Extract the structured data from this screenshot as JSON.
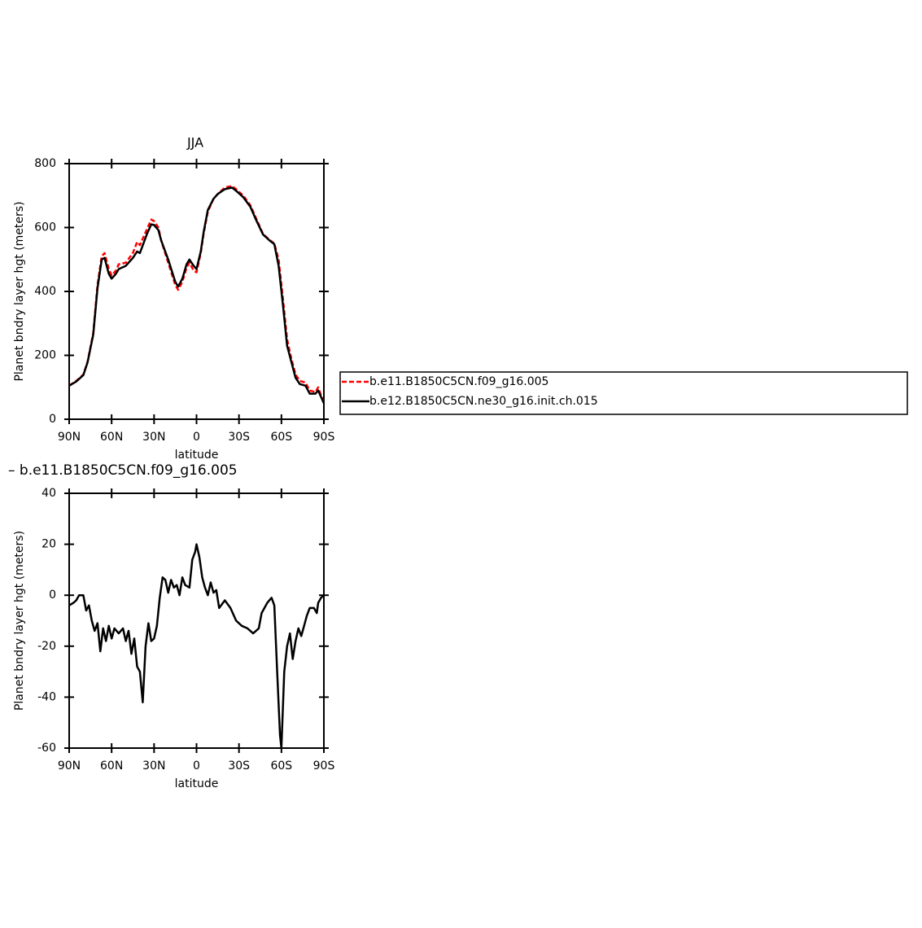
{
  "chart_data": [
    {
      "type": "line",
      "title": "JJA",
      "xlabel": "latitude",
      "ylabel": "Planet bndry layer hgt (meters)",
      "x": [
        90,
        85,
        80,
        77,
        73,
        70,
        67,
        65,
        62,
        60,
        57,
        55,
        50,
        45,
        42,
        40,
        35,
        32,
        30,
        27,
        25,
        20,
        15,
        13,
        10,
        7,
        5,
        2,
        0,
        -3,
        -5,
        -8,
        -12,
        -15,
        -20,
        -25,
        -28,
        -33,
        -38,
        -42,
        -47,
        -52,
        -55,
        -58,
        -61,
        -64,
        -67,
        -70,
        -73,
        -77,
        -80,
        -84,
        -86,
        -90
      ],
      "series": [
        {
          "name": "b.e11.B1850C5CN.f09_g16.005",
          "color": "#ff0000",
          "dash": "dashed",
          "values": [
            105,
            120,
            140,
            180,
            270,
            420,
            510,
            520,
            470,
            450,
            465,
            485,
            490,
            520,
            555,
            545,
            595,
            625,
            620,
            600,
            560,
            490,
            420,
            405,
            430,
            475,
            490,
            465,
            460,
            520,
            580,
            650,
            690,
            705,
            725,
            730,
            720,
            700,
            670,
            630,
            580,
            560,
            550,
            500,
            380,
            250,
            190,
            140,
            120,
            115,
            90,
            85,
            100,
            50
          ]
        },
        {
          "name": "b.e12.B1850C5CN.ne30_g16.init.ch.015",
          "color": "#000000",
          "dash": "solid",
          "values": [
            105,
            118,
            138,
            178,
            265,
            410,
            500,
            505,
            455,
            440,
            455,
            470,
            480,
            505,
            525,
            520,
            580,
            610,
            608,
            592,
            560,
            500,
            430,
            415,
            440,
            485,
            500,
            480,
            470,
            525,
            585,
            655,
            690,
            705,
            720,
            725,
            715,
            695,
            665,
            625,
            578,
            558,
            548,
            480,
            360,
            230,
            180,
            130,
            110,
            105,
            80,
            80,
            90,
            50
          ]
        }
      ],
      "xlim": [
        90,
        -90
      ],
      "xticks": [
        {
          "value": 90,
          "label": "90N"
        },
        {
          "value": 60,
          "label": "60N"
        },
        {
          "value": 30,
          "label": "30N"
        },
        0,
        {
          "value": -30,
          "label": "30S"
        },
        {
          "value": -60,
          "label": "60S"
        },
        {
          "value": -90,
          "label": "90S"
        }
      ],
      "ylim": [
        0,
        800
      ],
      "yticks": [
        0,
        200,
        400,
        600,
        800
      ],
      "legend": "right"
    },
    {
      "type": "line",
      "title": "– b.e11.B1850C5CN.f09_g16.005",
      "xlabel": "latitude",
      "ylabel": "Planet bndry layer hgt (meters)",
      "x": [
        90,
        87,
        85,
        83,
        80,
        78,
        76,
        74,
        72,
        70,
        68,
        66,
        64,
        62,
        60,
        58,
        55,
        52,
        50,
        48,
        46,
        44,
        42,
        40,
        38,
        36,
        34,
        32,
        30,
        28,
        26,
        24,
        22,
        20,
        18,
        16,
        14,
        12,
        10,
        8,
        5,
        3,
        1,
        0,
        -2,
        -4,
        -6,
        -8,
        -10,
        -12,
        -14,
        -16,
        -20,
        -24,
        -28,
        -32,
        -36,
        -40,
        -44,
        -46,
        -50,
        -53,
        -55,
        -57,
        -59,
        -60,
        -62,
        -64,
        -66,
        -68,
        -70,
        -72,
        -74,
        -76,
        -78,
        -80,
        -83,
        -85,
        -86,
        -88,
        -90
      ],
      "series": [
        {
          "color": "#000000",
          "dash": "solid",
          "values": [
            -4,
            -3,
            -2,
            0,
            0,
            -6,
            -4,
            -10,
            -14,
            -11,
            -22,
            -13,
            -18,
            -12,
            -17,
            -13,
            -15,
            -13,
            -18,
            -14,
            -23,
            -17,
            -28,
            -30,
            -42,
            -20,
            -11,
            -18,
            -17,
            -12,
            -1,
            7,
            6,
            1,
            6,
            3,
            4,
            0,
            7,
            4,
            3,
            14,
            17,
            20,
            15,
            7,
            3,
            0,
            5,
            1,
            2,
            -5,
            -2,
            -5,
            -10,
            -12,
            -13,
            -15,
            -13,
            -7,
            -3,
            -1,
            -4,
            -30,
            -55,
            -60,
            -30,
            -20,
            -15,
            -25,
            -18,
            -13,
            -16,
            -12,
            -8,
            -5,
            -5,
            -7,
            -3,
            -1,
            0
          ]
        }
      ],
      "xlim": [
        90,
        -90
      ],
      "xticks": [
        {
          "value": 90,
          "label": "90N"
        },
        {
          "value": 60,
          "label": "60N"
        },
        {
          "value": 30,
          "label": "30N"
        },
        0,
        {
          "value": -30,
          "label": "30S"
        },
        {
          "value": -60,
          "label": "60S"
        },
        {
          "value": -90,
          "label": "90S"
        }
      ],
      "ylim": [
        -60,
        40
      ],
      "yticks": [
        -60,
        -40,
        -20,
        0,
        20,
        40
      ]
    }
  ]
}
